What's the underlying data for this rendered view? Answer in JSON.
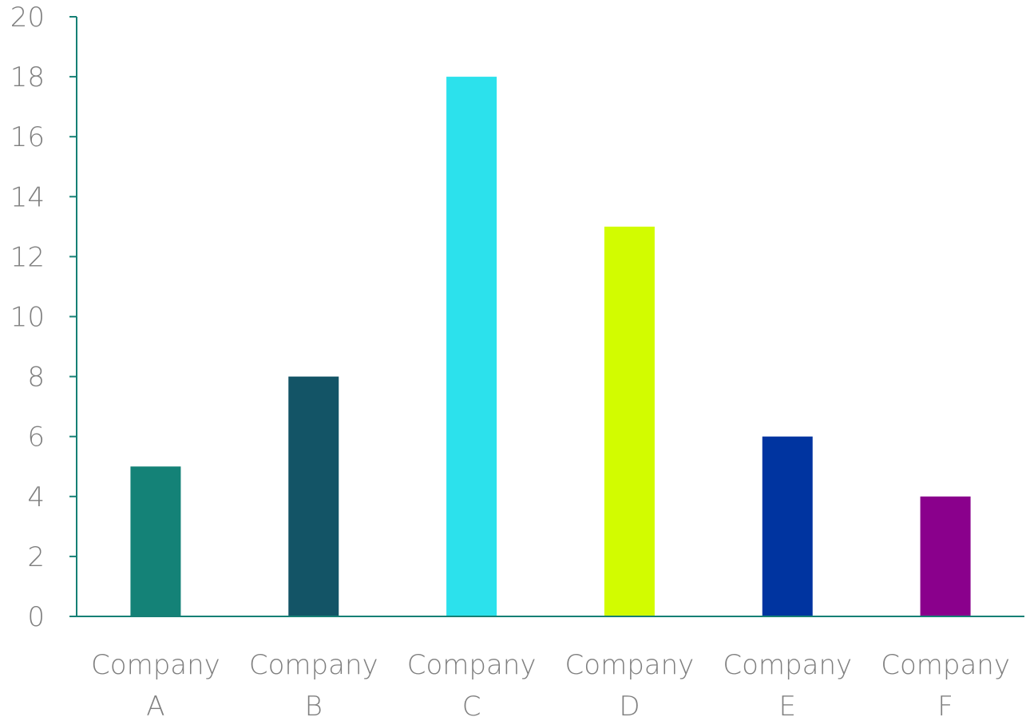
{
  "chart_data": {
    "type": "bar",
    "title": "",
    "xlabel": "",
    "ylabel": "",
    "categories": [
      [
        "Company",
        "A"
      ],
      [
        "Company",
        "B"
      ],
      [
        "Company",
        "C"
      ],
      [
        "Company",
        "D"
      ],
      [
        "Company",
        "E"
      ],
      [
        "Company",
        "F"
      ]
    ],
    "values": [
      5,
      8,
      18,
      13,
      6,
      4
    ],
    "colors": [
      "#148277",
      "#135466",
      "#2ce1ec",
      "#d2fc00",
      "#0034a0",
      "#8a008c"
    ],
    "ylim": [
      0,
      20
    ],
    "yticks": [
      "0",
      "2",
      "4",
      "6",
      "8",
      "10",
      "12",
      "14",
      "16",
      "18",
      "20"
    ],
    "axis_color": "#168075",
    "grid": false,
    "legend": "none"
  }
}
